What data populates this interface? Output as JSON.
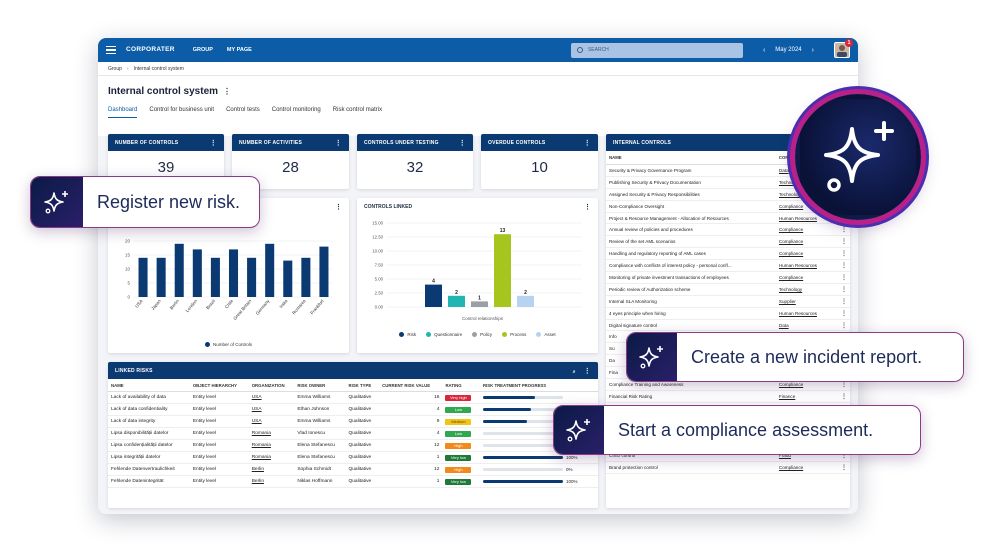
{
  "topbar": {
    "logo": "CORPORATER",
    "logo_sub": "",
    "nav": [
      "GROUP",
      "MY PAGE"
    ],
    "search_placeholder": "SEARCH",
    "period": "May 2024",
    "notifications": "1"
  },
  "breadcrumb": [
    "Group",
    "Internal control system"
  ],
  "page": {
    "title": "Internal control system",
    "tabs": [
      "Dashboard",
      "Control for business unit",
      "Control tests",
      "Control monitoring",
      "Risk control matrix"
    ],
    "active_tab": 0
  },
  "kpis": [
    {
      "label": "NUMBER OF CONTROLS",
      "value": "39"
    },
    {
      "label": "NUMBER OF ACTIVITIES",
      "value": "28"
    },
    {
      "label": "CONTROLS UNDER TESTING",
      "value": "32"
    },
    {
      "label": "OVERDUE CONTROLS",
      "value": "10"
    }
  ],
  "chart_data": [
    {
      "type": "bar",
      "title": "",
      "categories": [
        "USA",
        "Japan",
        "Berlin",
        "London",
        "Brazil",
        "Chile",
        "Great Britain",
        "Germany",
        "India",
        "Romania",
        "Frankfurt"
      ],
      "values": [
        14,
        14,
        19,
        17,
        14,
        17,
        14,
        19,
        13,
        14,
        18
      ],
      "ylim": [
        0,
        25
      ],
      "yticks": [
        "0",
        "5",
        "10",
        "15",
        "20"
      ],
      "legend": [
        "Number of Controls"
      ],
      "color": "#0b3a72"
    },
    {
      "type": "bar",
      "title": "CONTROLS LINKED",
      "xlabel": "Control relationships",
      "categories": [
        "Risk",
        "Questionnaire",
        "Policy",
        "Process",
        "Asset"
      ],
      "values": [
        4,
        2,
        1,
        13,
        2
      ],
      "ylim": [
        0,
        15
      ],
      "yticks": [
        "0.00",
        "2.50",
        "5.00",
        "7.50",
        "10.00",
        "12.50",
        "15.00"
      ],
      "colors": [
        "#0b3a72",
        "#1fb5b0",
        "#9aa0a8",
        "#a6c51e",
        "#b7d3ef"
      ]
    }
  ],
  "linked_risks": {
    "title": "LINKED RISKS",
    "columns": [
      "NAME",
      "OBJECT HIERARCHY",
      "ORGANIZATION",
      "RISK OWNER",
      "RISK TYPE",
      "CURRENT RISK VALUE",
      "RATING",
      "RISK TREATMENT PROGRESS"
    ],
    "rows": [
      {
        "name": "Lack of availability of data",
        "hier": "Entity level",
        "org": "USA",
        "owner": "Emma Williams",
        "type": "Qualitative",
        "value": "16",
        "rating": "Very high",
        "rcolor": "#d9263a",
        "progress": 0.65,
        "ptext": ""
      },
      {
        "name": "Lack of data confidentiality",
        "hier": "Entity level",
        "org": "USA",
        "owner": "Ethan Johnson",
        "type": "Qualitative",
        "value": "4",
        "rating": "Low",
        "rcolor": "#2fa84f",
        "progress": 0.6,
        "ptext": ""
      },
      {
        "name": "Lack of data integrity",
        "hier": "Entity level",
        "org": "USA",
        "owner": "Emma Williams",
        "type": "Qualitative",
        "value": "9",
        "rating": "Medium",
        "rcolor": "#f0c419",
        "progress": 0.55,
        "ptext": ""
      },
      {
        "name": "Lipsa disponibilității datelor",
        "hier": "Entity level",
        "org": "Romania",
        "owner": "Vlad Ionescu",
        "type": "Qualitative",
        "value": "4",
        "rating": "Low",
        "rcolor": "#2fa84f",
        "progress": 0.0,
        "ptext": ""
      },
      {
        "name": "Lipsa confidențialității datelor",
        "hier": "Entity level",
        "org": "Romania",
        "owner": "Elena Stefanescu",
        "type": "Qualitative",
        "value": "12",
        "rating": "High",
        "rcolor": "#f08a1c",
        "progress": 0.0,
        "ptext": ""
      },
      {
        "name": "Lipsa integrității datelor",
        "hier": "Entity level",
        "org": "Romania",
        "owner": "Elena Stefanescu",
        "type": "Qualitative",
        "value": "1",
        "rating": "Very low",
        "rcolor": "#1f7a3a",
        "progress": 1.0,
        "ptext": "100%"
      },
      {
        "name": "Fehlende Datenvertraulichkeit",
        "hier": "Entity level",
        "org": "Berlin",
        "owner": "Sophia Schmidt",
        "type": "Qualitative",
        "value": "12",
        "rating": "High",
        "rcolor": "#f08a1c",
        "progress": 0.0,
        "ptext": "0%"
      },
      {
        "name": "Fehlende Datenintegrität",
        "hier": "Entity level",
        "org": "Berlin",
        "owner": "Niklas Hoffmann",
        "type": "Qualitative",
        "value": "1",
        "rating": "Very low",
        "rcolor": "#1f7a3a",
        "progress": 1.0,
        "ptext": "100%"
      }
    ]
  },
  "internal_controls": {
    "title": "INTERNAL CONTROLS",
    "columns": [
      "NAME",
      "CONTROL CA"
    ],
    "rows": [
      [
        "Security & Privacy Governance Program",
        "Data"
      ],
      [
        "Publishing Security & Privacy Documentation",
        "Technology"
      ],
      [
        "Assigned Security & Privacy Responsibilities",
        "Technology"
      ],
      [
        "Non-Compliance Oversight",
        "Compliance"
      ],
      [
        "Project & Resource Management - Allocation of Resources",
        "Human Resources"
      ],
      [
        "Annual review of policies and procedures",
        "Compliance"
      ],
      [
        "Review of the set AML scenarios",
        "Compliance"
      ],
      [
        "Handling and regulatory reporting of AML cases",
        "Compliance"
      ],
      [
        "Compliance with conflicts of interest policy - personal confl...",
        "Human Resources"
      ],
      [
        "Monitoring of private investment transactions of employees",
        "Compliance"
      ],
      [
        "Periodic review of Authorization scheme",
        "Technology"
      ],
      [
        "Internal SLA Monitoring",
        "Supplier"
      ],
      [
        "4 eyes principle when hiring",
        "Human Resources"
      ],
      [
        "Digital signature control",
        "Data"
      ],
      [
        "Info",
        ""
      ],
      [
        "Su",
        ""
      ],
      [
        "Da",
        ""
      ],
      [
        "Fina",
        ""
      ],
      [
        "Compliance Training and Awareness",
        "Compliance"
      ],
      [
        "Financial Risk Rating",
        "Finance"
      ],
      [
        "",
        ""
      ],
      [
        "",
        ""
      ],
      [
        "",
        ""
      ],
      [
        "Digital Transformation Strategy",
        "Strategy"
      ],
      [
        "CISO control",
        "Fraud"
      ],
      [
        "Brand protection control",
        "Compliance"
      ]
    ]
  },
  "callouts": {
    "register": "Register new risk.",
    "incident": "Create a new incident report.",
    "compliance": "Start a compliance assessment."
  },
  "icons": {
    "sparkle": "sparkle-icon",
    "search": "search-icon",
    "menu": "hamburger-icon"
  },
  "colors": {
    "brand": "#0d5ca8",
    "header_dark": "#0b3a72",
    "callout_border": "#8b3a8a"
  }
}
